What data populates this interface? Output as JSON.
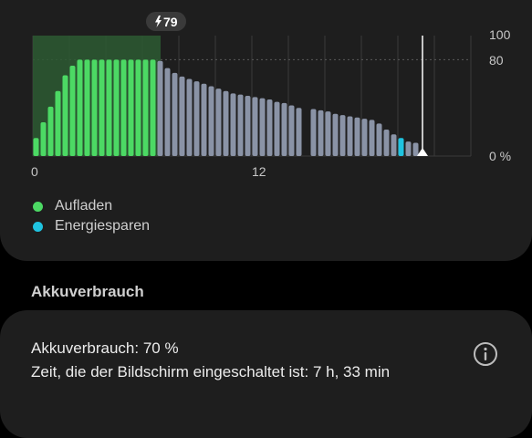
{
  "colors": {
    "charging": "#4cd964",
    "power_saving": "#1fc3e0",
    "normal": "#8a93a6",
    "charging_region": "#2d5a33",
    "card": "#1e1e1e"
  },
  "chart": {
    "badge_icon": "lightning-bolt-icon",
    "badge_value": "79",
    "y_tick_labels": [
      "100",
      "80",
      "0 %"
    ],
    "x_tick_labels": [
      "0",
      "12"
    ]
  },
  "chart_data": {
    "type": "bar",
    "x_range": [
      0,
      24
    ],
    "y_range": [
      0,
      100
    ],
    "reference_line_y": 80,
    "grid": true,
    "charging_window": [
      0,
      7
    ],
    "bars": [
      {
        "x": 0.0,
        "y": 15,
        "state": "charging"
      },
      {
        "x": 0.4,
        "y": 28,
        "state": "charging"
      },
      {
        "x": 0.8,
        "y": 41,
        "state": "charging"
      },
      {
        "x": 1.2,
        "y": 54,
        "state": "charging"
      },
      {
        "x": 1.6,
        "y": 67,
        "state": "charging"
      },
      {
        "x": 2.0,
        "y": 75,
        "state": "charging"
      },
      {
        "x": 2.4,
        "y": 80,
        "state": "charging"
      },
      {
        "x": 2.8,
        "y": 80,
        "state": "charging"
      },
      {
        "x": 3.2,
        "y": 80,
        "state": "charging"
      },
      {
        "x": 3.6,
        "y": 80,
        "state": "charging"
      },
      {
        "x": 4.0,
        "y": 80,
        "state": "charging"
      },
      {
        "x": 4.4,
        "y": 80,
        "state": "charging"
      },
      {
        "x": 4.8,
        "y": 80,
        "state": "charging"
      },
      {
        "x": 5.2,
        "y": 80,
        "state": "charging"
      },
      {
        "x": 5.6,
        "y": 80,
        "state": "charging"
      },
      {
        "x": 6.0,
        "y": 80,
        "state": "charging"
      },
      {
        "x": 6.4,
        "y": 80,
        "state": "charging"
      },
      {
        "x": 6.8,
        "y": 79,
        "state": "normal"
      },
      {
        "x": 7.2,
        "y": 73,
        "state": "normal"
      },
      {
        "x": 7.6,
        "y": 69,
        "state": "normal"
      },
      {
        "x": 8.0,
        "y": 66,
        "state": "normal"
      },
      {
        "x": 8.4,
        "y": 64,
        "state": "normal"
      },
      {
        "x": 8.8,
        "y": 62,
        "state": "normal"
      },
      {
        "x": 9.2,
        "y": 60,
        "state": "normal"
      },
      {
        "x": 9.6,
        "y": 58,
        "state": "normal"
      },
      {
        "x": 10.0,
        "y": 56,
        "state": "normal"
      },
      {
        "x": 10.4,
        "y": 54,
        "state": "normal"
      },
      {
        "x": 10.8,
        "y": 52,
        "state": "normal"
      },
      {
        "x": 11.2,
        "y": 51,
        "state": "normal"
      },
      {
        "x": 11.6,
        "y": 50,
        "state": "normal"
      },
      {
        "x": 12.0,
        "y": 49,
        "state": "normal"
      },
      {
        "x": 12.4,
        "y": 48,
        "state": "normal"
      },
      {
        "x": 12.8,
        "y": 47,
        "state": "normal"
      },
      {
        "x": 13.2,
        "y": 45,
        "state": "normal"
      },
      {
        "x": 13.6,
        "y": 44,
        "state": "normal"
      },
      {
        "x": 14.0,
        "y": 42,
        "state": "normal"
      },
      {
        "x": 14.4,
        "y": 40,
        "state": "normal"
      },
      {
        "x": 15.2,
        "y": 39,
        "state": "normal"
      },
      {
        "x": 15.6,
        "y": 38,
        "state": "normal"
      },
      {
        "x": 16.0,
        "y": 37,
        "state": "normal"
      },
      {
        "x": 16.4,
        "y": 35,
        "state": "normal"
      },
      {
        "x": 16.8,
        "y": 34,
        "state": "normal"
      },
      {
        "x": 17.2,
        "y": 33,
        "state": "normal"
      },
      {
        "x": 17.6,
        "y": 32,
        "state": "normal"
      },
      {
        "x": 18.0,
        "y": 31,
        "state": "normal"
      },
      {
        "x": 18.4,
        "y": 30,
        "state": "normal"
      },
      {
        "x": 18.8,
        "y": 27,
        "state": "normal"
      },
      {
        "x": 19.2,
        "y": 22,
        "state": "normal"
      },
      {
        "x": 19.6,
        "y": 18,
        "state": "normal"
      },
      {
        "x": 20.0,
        "y": 15,
        "state": "power_saving"
      },
      {
        "x": 20.4,
        "y": 12,
        "state": "normal"
      },
      {
        "x": 20.8,
        "y": 11,
        "state": "normal"
      }
    ],
    "current_x": 21.2
  },
  "legend": [
    {
      "label": "Aufladen",
      "color": "#4cd964"
    },
    {
      "label": "Energiesparen",
      "color": "#1fc3e0"
    }
  ],
  "section_title": "Akkuverbrauch",
  "usage": {
    "line1": "Akkuverbrauch: 70 %",
    "line2": "Zeit, die der Bildschirm eingeschaltet ist: 7 h, 33 min",
    "info_icon": "info-icon"
  }
}
